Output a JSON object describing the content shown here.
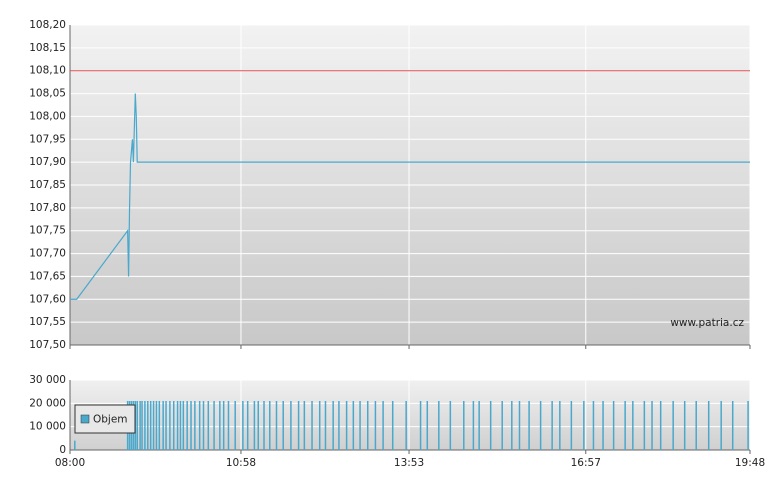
{
  "chart_data": [
    {
      "type": "line",
      "watermark": "www.patria.cz",
      "x": [
        "08:00",
        "08:07",
        "09:00",
        "09:01",
        "09:02",
        "09:03",
        "09:05",
        "09:06",
        "09:08",
        "09:09",
        "09:10",
        "19:48"
      ],
      "series": [
        {
          "color": "#4aa8cc",
          "values": [
            107.6,
            107.6,
            107.75,
            107.65,
            107.8,
            107.9,
            107.95,
            107.9,
            108.05,
            108.0,
            107.9,
            107.9
          ]
        }
      ],
      "reference_line": {
        "value": 108.1,
        "color": "#e05050"
      },
      "xlim": [
        "08:00",
        "19:48"
      ],
      "xticks": [
        "08:00",
        "10:58",
        "13:53",
        "16:57",
        "19:48"
      ],
      "ylim": [
        107.5,
        108.2
      ],
      "yticks": [
        {
          "value": 107.5,
          "label": "107,50"
        },
        {
          "value": 107.55,
          "label": "107,55"
        },
        {
          "value": 107.6,
          "label": "107,60"
        },
        {
          "value": 107.65,
          "label": "107,65"
        },
        {
          "value": 107.7,
          "label": "107,70"
        },
        {
          "value": 107.75,
          "label": "107,75"
        },
        {
          "value": 107.8,
          "label": "107,80"
        },
        {
          "value": 107.85,
          "label": "107,85"
        },
        {
          "value": 107.9,
          "label": "107,90"
        },
        {
          "value": 107.95,
          "label": "107,95"
        },
        {
          "value": 108.0,
          "label": "108,00"
        },
        {
          "value": 108.05,
          "label": "108,05"
        },
        {
          "value": 108.1,
          "label": "108,10"
        },
        {
          "value": 108.15,
          "label": "108,15"
        },
        {
          "value": 108.2,
          "label": "108,20"
        }
      ],
      "grid": true
    },
    {
      "type": "bar",
      "x": [
        "08:05",
        "09:00",
        "09:02",
        "09:04",
        "09:06",
        "09:08",
        "09:10",
        "09:13",
        "09:15",
        "09:18",
        "09:21",
        "09:24",
        "09:27",
        "09:30",
        "09:33",
        "09:37",
        "09:40",
        "09:44",
        "09:48",
        "09:52",
        "09:55",
        "09:58",
        "10:02",
        "10:06",
        "10:10",
        "10:15",
        "10:19",
        "10:24",
        "10:30",
        "10:36",
        "10:40",
        "10:45",
        "10:52",
        "11:00",
        "11:05",
        "11:12",
        "11:16",
        "11:22",
        "11:28",
        "11:35",
        "11:42",
        "11:50",
        "11:58",
        "12:04",
        "12:12",
        "12:20",
        "12:26",
        "12:34",
        "12:40",
        "12:48",
        "12:55",
        "13:02",
        "13:10",
        "13:18",
        "13:26",
        "13:36",
        "13:50",
        "14:05",
        "14:12",
        "14:24",
        "14:36",
        "14:50",
        "15:00",
        "15:06",
        "15:18",
        "15:30",
        "15:40",
        "15:48",
        "15:58",
        "16:10",
        "16:22",
        "16:30",
        "16:42",
        "16:55",
        "17:05",
        "17:15",
        "17:26",
        "17:38",
        "17:46",
        "17:58",
        "18:06",
        "18:15",
        "18:28",
        "18:40",
        "18:52",
        "19:05",
        "19:18",
        "19:30",
        "19:46"
      ],
      "series": [
        {
          "name": "Objem",
          "color": "#4aa8cc",
          "values": [
            4000,
            21000,
            21000,
            21000,
            21000,
            21000,
            21000,
            21000,
            21000,
            21000,
            21000,
            21000,
            21000,
            21000,
            21000,
            21000,
            21000,
            21000,
            21000,
            21000,
            21000,
            21000,
            21000,
            21000,
            21000,
            21000,
            21000,
            21000,
            21000,
            21000,
            21000,
            21000,
            21000,
            21000,
            21000,
            21000,
            21000,
            21000,
            21000,
            21000,
            21000,
            21000,
            21000,
            21000,
            21000,
            21000,
            21000,
            21000,
            21000,
            21000,
            21000,
            21000,
            21000,
            21000,
            21000,
            21000,
            21000,
            21000,
            21000,
            21000,
            21000,
            21000,
            21000,
            21000,
            21000,
            21000,
            21000,
            21000,
            21000,
            21000,
            21000,
            21000,
            21000,
            21000,
            21000,
            21000,
            21000,
            21000,
            21000,
            21000,
            21000,
            21000,
            21000,
            21000,
            21000,
            21000,
            21000,
            21000,
            21000
          ]
        }
      ],
      "xlim": [
        "08:00",
        "19:48"
      ],
      "xticks": [
        "08:00",
        "10:58",
        "13:53",
        "16:57",
        "19:48"
      ],
      "ylim": [
        0,
        30000
      ],
      "yticks": [
        0,
        {
          "value": 10000,
          "label": "10 000"
        },
        {
          "value": 20000,
          "label": "20 000"
        },
        {
          "value": 30000,
          "label": "30 000"
        }
      ],
      "grid": true
    }
  ]
}
